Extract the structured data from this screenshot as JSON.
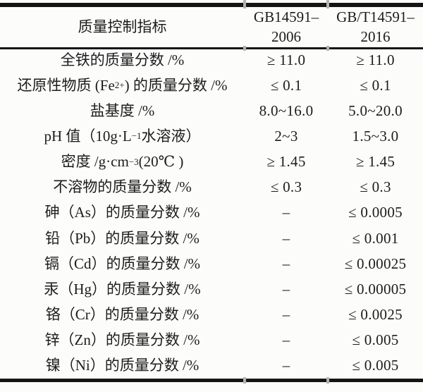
{
  "table": {
    "header": {
      "indicator": "质量控制指标",
      "std1_line1": "GB14591–",
      "std1_line2": "2006",
      "std2_line1": "GB/T14591–",
      "std2_line2": "2016"
    },
    "rows": [
      {
        "indicator": "全铁的质量分数 /%",
        "v2006": "≥ 11.0",
        "v2016": "≥ 11.0"
      },
      {
        "pre": "还原性物质 (Fe",
        "sup": "2+",
        "tail": ") 的质量分数 /%",
        "v2006": "≤ 0.1",
        "v2016": "≤ 0.1"
      },
      {
        "indicator": "盐基度 /%",
        "v2006": "8.0~16.0",
        "v2016": "5.0~20.0"
      },
      {
        "pre": "pH 值（10g·L",
        "sup": "−1",
        "tail": " 水溶液）",
        "v2006": "2~3",
        "v2016": "1.5~3.0"
      },
      {
        "pre": "密度 /g·cm",
        "sup": "−3",
        "tail": "(20℃ )",
        "v2006": "≥ 1.45",
        "v2016": "≥ 1.45"
      },
      {
        "indicator": "不溶物的质量分数 /%",
        "v2006": "≤ 0.3",
        "v2016": "≤ 0.3"
      },
      {
        "indicator": "砷（As）的质量分数 /%",
        "v2006": "–",
        "v2016": "≤ 0.0005"
      },
      {
        "indicator": "铅（Pb）的质量分数 /%",
        "v2006": "–",
        "v2016": "≤ 0.001"
      },
      {
        "indicator": "镉（Cd）的质量分数 /%",
        "v2006": "–",
        "v2016": "≤ 0.00025"
      },
      {
        "indicator": "汞（Hg）的质量分数 /%",
        "v2006": "–",
        "v2016": "≤ 0.00005"
      },
      {
        "indicator": "铬（Cr）的质量分数 /%",
        "v2006": "–",
        "v2016": "≤ 0.0025"
      },
      {
        "indicator": "锌（Zn）的质量分数 /%",
        "v2006": "–",
        "v2016": "≤ 0.005"
      },
      {
        "indicator": "镍（Ni）的质量分数 /%",
        "v2006": "–",
        "v2016": "≤ 0.005"
      }
    ]
  }
}
